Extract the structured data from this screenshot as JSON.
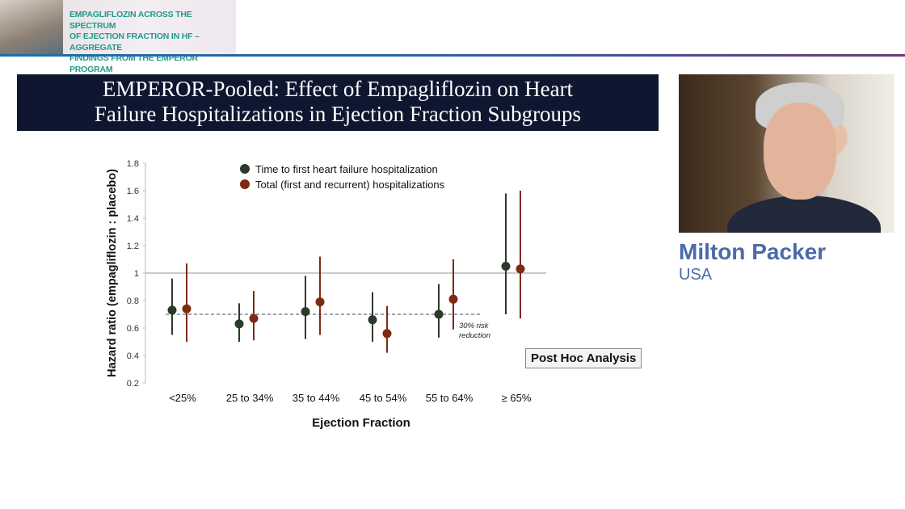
{
  "banner": {
    "text": "EMPAGLIFLOZIN ACROSS THE SPECTRUM OF EJECTION FRACTION IN HF – AGGREGATE FINDINGS FROM THE EMPEROR PROGRAM",
    "lines": [
      "EMPAGLIFLOZIN ACROSS THE SPECTRUM",
      "OF EJECTION FRACTION IN HF – AGGREGATE",
      "FINDINGS FROM THE EMPEROR PROGRAM"
    ]
  },
  "slide": {
    "title_lines": [
      "EMPEROR-Pooled: Effect of Empagliflozin on Heart",
      "Failure Hospitalizations in Ejection Fraction Subgroups"
    ],
    "post_hoc": "Post Hoc Analysis"
  },
  "speaker": {
    "name": "Milton Packer",
    "country": "USA"
  },
  "chart_data": {
    "type": "scatter",
    "subtype": "forest-plot-with-error-bars",
    "xlabel": "Ejection Fraction",
    "ylabel": "Hazard ratio (empagliflozin : placebo)",
    "categories": [
      "<25%",
      "25 to 34%",
      "35 to 44%",
      "45 to 54%",
      "55 to 64%",
      "≥ 65%"
    ],
    "ylim": [
      0.2,
      1.8
    ],
    "yticks": [
      "0.2",
      "0.4",
      "0.6",
      "0.8",
      "1",
      "1.2",
      "1.4",
      "1.6",
      "1.8"
    ],
    "legend_position": "top",
    "grid": false,
    "reference_line": 1,
    "dashed_line": {
      "value": 0.7,
      "label_lines": [
        "30% risk",
        "reduction"
      ]
    },
    "series": [
      {
        "name": "Time to first heart failure hospitalization",
        "color": "#2b3a2a",
        "values": [
          0.73,
          0.63,
          0.72,
          0.66,
          0.7,
          1.05
        ],
        "lower": [
          0.55,
          0.5,
          0.52,
          0.5,
          0.53,
          0.7
        ],
        "upper": [
          0.96,
          0.78,
          0.98,
          0.86,
          0.92,
          1.58
        ]
      },
      {
        "name": "Total (first and recurrent) hospitalizations",
        "color": "#7e2a12",
        "values": [
          0.74,
          0.67,
          0.79,
          0.56,
          0.81,
          1.03
        ],
        "lower": [
          0.5,
          0.51,
          0.55,
          0.42,
          0.59,
          0.67
        ],
        "upper": [
          1.07,
          0.87,
          1.12,
          0.76,
          1.1,
          1.6
        ]
      }
    ]
  }
}
